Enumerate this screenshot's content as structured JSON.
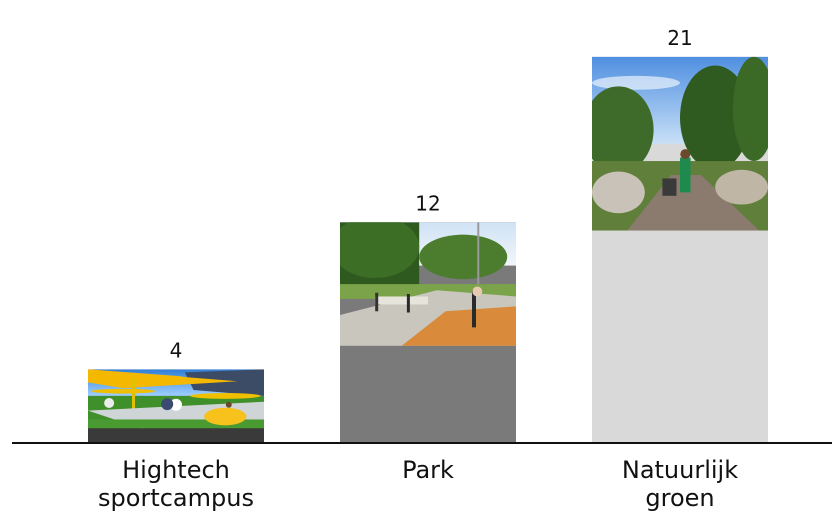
{
  "chart_data": {
    "type": "bar",
    "categories": [
      "Hightech sportcampus",
      "Park",
      "Natuurlijk groen"
    ],
    "category_lines": [
      [
        "Hightech",
        "sportcampus"
      ],
      [
        "Park"
      ],
      [
        "Natuurlijk",
        "groen"
      ]
    ],
    "values": [
      4,
      12,
      21
    ],
    "value_labels": [
      "4",
      "12",
      "21"
    ],
    "bar_colors": [
      "#3a3a3a",
      "#7a7a7a",
      "#d9d9d9"
    ],
    "ylim": [
      0,
      23
    ],
    "grid": false,
    "legend": "none",
    "image_fraction_of_bar": [
      0.8,
      0.56,
      0.45
    ]
  }
}
